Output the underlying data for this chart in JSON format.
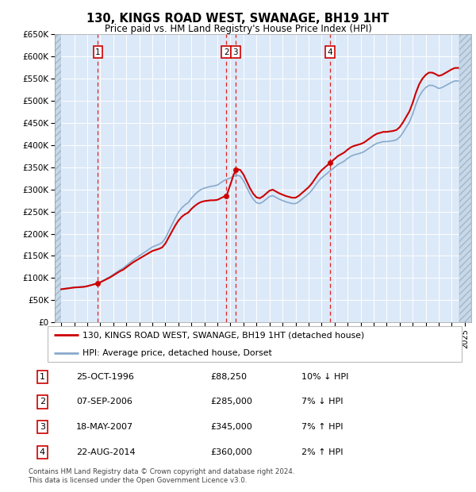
{
  "title": "130, KINGS ROAD WEST, SWANAGE, BH19 1HT",
  "subtitle": "Price paid vs. HM Land Registry's House Price Index (HPI)",
  "plot_bg_color": "#dce9f8",
  "ylim": [
    0,
    650000
  ],
  "yticks": [
    0,
    50000,
    100000,
    150000,
    200000,
    250000,
    300000,
    350000,
    400000,
    450000,
    500000,
    550000,
    600000,
    650000
  ],
  "ytick_labels": [
    "£0",
    "£50K",
    "£100K",
    "£150K",
    "£200K",
    "£250K",
    "£300K",
    "£350K",
    "£400K",
    "£450K",
    "£500K",
    "£550K",
    "£600K",
    "£650K"
  ],
  "xlim_start": 1993.5,
  "xlim_end": 2025.5,
  "hpi_years": [
    1994,
    1994.25,
    1994.5,
    1994.75,
    1995,
    1995.25,
    1995.5,
    1995.75,
    1996,
    1996.25,
    1996.5,
    1996.75,
    1997,
    1997.25,
    1997.5,
    1997.75,
    1998,
    1998.25,
    1998.5,
    1998.75,
    1999,
    1999.25,
    1999.5,
    1999.75,
    2000,
    2000.25,
    2000.5,
    2000.75,
    2001,
    2001.25,
    2001.5,
    2001.75,
    2002,
    2002.25,
    2002.5,
    2002.75,
    2003,
    2003.25,
    2003.5,
    2003.75,
    2004,
    2004.25,
    2004.5,
    2004.75,
    2005,
    2005.25,
    2005.5,
    2005.75,
    2006,
    2006.25,
    2006.5,
    2006.75,
    2007,
    2007.25,
    2007.5,
    2007.75,
    2008,
    2008.25,
    2008.5,
    2008.75,
    2009,
    2009.25,
    2009.5,
    2009.75,
    2010,
    2010.25,
    2010.5,
    2010.75,
    2011,
    2011.25,
    2011.5,
    2011.75,
    2012,
    2012.25,
    2012.5,
    2012.75,
    2013,
    2013.25,
    2013.5,
    2013.75,
    2014,
    2014.25,
    2014.5,
    2014.75,
    2015,
    2015.25,
    2015.5,
    2015.75,
    2016,
    2016.25,
    2016.5,
    2016.75,
    2017,
    2017.25,
    2017.5,
    2017.75,
    2018,
    2018.25,
    2018.5,
    2018.75,
    2019,
    2019.25,
    2019.5,
    2019.75,
    2020,
    2020.25,
    2020.5,
    2020.75,
    2021,
    2021.25,
    2021.5,
    2021.75,
    2022,
    2022.25,
    2022.5,
    2022.75,
    2023,
    2023.25,
    2023.5,
    2023.75,
    2024,
    2024.25,
    2024.5
  ],
  "hpi_values": [
    75000,
    76000,
    77000,
    78000,
    79000,
    79500,
    80000,
    80500,
    82000,
    84000,
    86000,
    88000,
    91000,
    95000,
    99000,
    103000,
    108000,
    113000,
    118000,
    122000,
    128000,
    134000,
    140000,
    145000,
    150000,
    155000,
    160000,
    165000,
    170000,
    173000,
    176000,
    180000,
    190000,
    205000,
    220000,
    235000,
    248000,
    258000,
    265000,
    270000,
    280000,
    288000,
    295000,
    300000,
    303000,
    305000,
    307000,
    308000,
    310000,
    315000,
    320000,
    323000,
    326000,
    330000,
    332000,
    330000,
    320000,
    305000,
    290000,
    278000,
    270000,
    268000,
    272000,
    278000,
    284000,
    286000,
    282000,
    278000,
    275000,
    272000,
    270000,
    268000,
    268000,
    272000,
    278000,
    284000,
    290000,
    298000,
    308000,
    318000,
    326000,
    332000,
    338000,
    344000,
    350000,
    356000,
    360000,
    364000,
    370000,
    375000,
    378000,
    380000,
    382000,
    385000,
    390000,
    395000,
    400000,
    404000,
    406000,
    408000,
    408000,
    409000,
    410000,
    412000,
    418000,
    428000,
    440000,
    452000,
    470000,
    492000,
    510000,
    522000,
    530000,
    535000,
    535000,
    532000,
    528000,
    530000,
    534000,
    538000,
    542000,
    545000,
    545000
  ],
  "sale_points": [
    {
      "year": 1996.82,
      "value": 88250,
      "label": "1"
    },
    {
      "year": 2006.69,
      "value": 285000,
      "label": "2"
    },
    {
      "year": 2007.38,
      "value": 345000,
      "label": "3"
    },
    {
      "year": 2014.65,
      "value": 360000,
      "label": "4"
    }
  ],
  "vline_years": [
    1996.82,
    2006.69,
    2007.38,
    2014.65
  ],
  "hatch_end_year": 1994.0,
  "hatch_start_year2": 2024.6,
  "legend_label_red": "130, KINGS ROAD WEST, SWANAGE, BH19 1HT (detached house)",
  "legend_label_blue": "HPI: Average price, detached house, Dorset",
  "transactions": [
    {
      "num": "1",
      "date": "25-OCT-1996",
      "price": "£88,250",
      "hpi": "10% ↓ HPI"
    },
    {
      "num": "2",
      "date": "07-SEP-2006",
      "price": "£285,000",
      "hpi": "7% ↓ HPI"
    },
    {
      "num": "3",
      "date": "18-MAY-2007",
      "price": "£345,000",
      "hpi": "7% ↑ HPI"
    },
    {
      "num": "4",
      "date": "22-AUG-2014",
      "price": "£360,000",
      "hpi": "2% ↑ HPI"
    }
  ],
  "footer": "Contains HM Land Registry data © Crown copyright and database right 2024.\nThis data is licensed under the Open Government Licence v3.0.",
  "red_color": "#cc0000",
  "blue_color": "#88aacc",
  "vline_color": "#dd0000",
  "marker_box_color": "#cc0000",
  "grid_color": "#ffffff"
}
